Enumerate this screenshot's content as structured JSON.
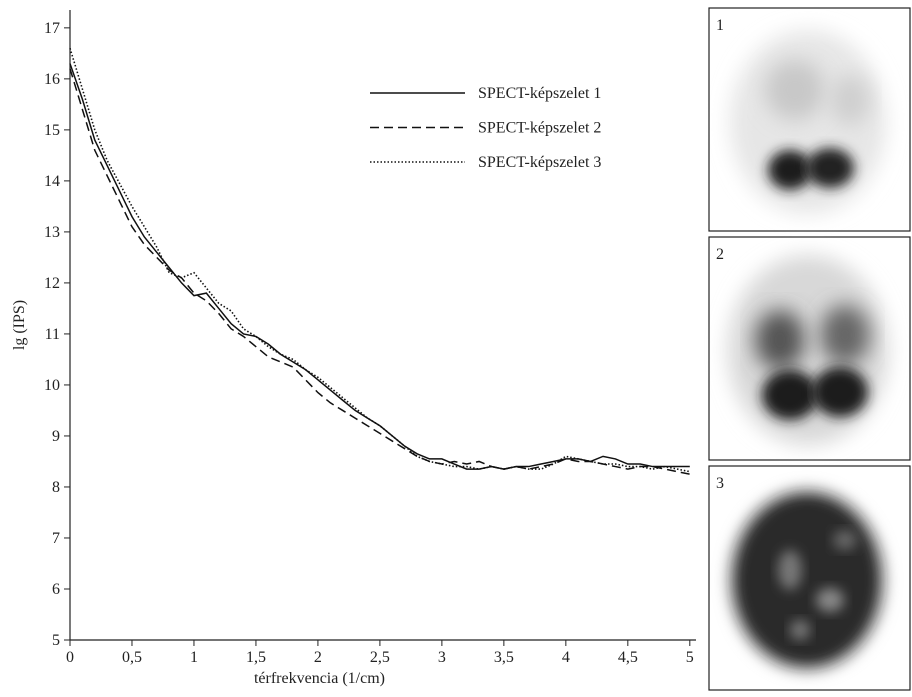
{
  "chart_data": {
    "type": "line",
    "x_label": "térfrekvencia (1/cm)",
    "y_label": "lg (IPS)",
    "x": [
      0,
      0.1,
      0.2,
      0.3,
      0.4,
      0.5,
      0.6,
      0.7,
      0.8,
      0.9,
      1.0,
      1.1,
      1.2,
      1.3,
      1.4,
      1.5,
      1.6,
      1.7,
      1.8,
      1.9,
      2.0,
      2.1,
      2.2,
      2.3,
      2.4,
      2.5,
      2.6,
      2.7,
      2.8,
      2.9,
      3.0,
      3.1,
      3.2,
      3.3,
      3.4,
      3.5,
      3.6,
      3.7,
      3.8,
      3.9,
      4.0,
      4.1,
      4.2,
      4.3,
      4.4,
      4.5,
      4.6,
      4.7,
      4.8,
      4.9,
      5.0
    ],
    "series": [
      {
        "name": "SPECT-képszelet 1",
        "color": "#111111",
        "style": "solid",
        "values": [
          16.3,
          15.6,
          14.8,
          14.3,
          13.8,
          13.3,
          12.9,
          12.6,
          12.3,
          12.0,
          11.75,
          11.8,
          11.5,
          11.2,
          11.0,
          10.95,
          10.8,
          10.6,
          10.45,
          10.3,
          10.1,
          9.9,
          9.7,
          9.5,
          9.35,
          9.2,
          9.0,
          8.8,
          8.65,
          8.55,
          8.55,
          8.45,
          8.35,
          8.35,
          8.4,
          8.35,
          8.4,
          8.4,
          8.45,
          8.5,
          8.55,
          8.55,
          8.5,
          8.6,
          8.55,
          8.45,
          8.45,
          8.4,
          8.4,
          8.4,
          8.4
        ]
      },
      {
        "name": "SPECT-képszelet 2",
        "color": "#111111",
        "style": "dashed",
        "values": [
          16.2,
          15.4,
          14.6,
          14.1,
          13.6,
          13.1,
          12.75,
          12.5,
          12.25,
          12.1,
          11.8,
          11.65,
          11.4,
          11.1,
          10.95,
          10.75,
          10.55,
          10.45,
          10.35,
          10.1,
          9.85,
          9.65,
          9.5,
          9.35,
          9.2,
          9.05,
          8.9,
          8.75,
          8.6,
          8.5,
          8.45,
          8.5,
          8.45,
          8.5,
          8.4,
          8.35,
          8.4,
          8.35,
          8.4,
          8.45,
          8.55,
          8.5,
          8.5,
          8.45,
          8.4,
          8.35,
          8.4,
          8.4,
          8.35,
          8.3,
          8.25
        ]
      },
      {
        "name": "SPECT-képszelet 3",
        "color": "#111111",
        "style": "dotted",
        "values": [
          16.6,
          15.8,
          15.0,
          14.4,
          13.95,
          13.5,
          13.1,
          12.7,
          12.2,
          12.1,
          12.2,
          11.9,
          11.6,
          11.45,
          11.1,
          10.95,
          10.75,
          10.6,
          10.5,
          10.3,
          10.15,
          9.95,
          9.75,
          9.55,
          9.35,
          9.2,
          9.0,
          8.8,
          8.6,
          8.5,
          8.45,
          8.4,
          8.4,
          8.35,
          8.4,
          8.35,
          8.4,
          8.35,
          8.35,
          8.45,
          8.6,
          8.55,
          8.5,
          8.45,
          8.45,
          8.4,
          8.4,
          8.35,
          8.4,
          8.35,
          8.3
        ]
      }
    ],
    "xlim": [
      0,
      5.05
    ],
    "xticks": [
      0,
      {
        "value": 0.5,
        "label": "0,5"
      },
      1,
      {
        "value": 1.5,
        "label": "1,5"
      },
      2,
      {
        "value": 2.5,
        "label": "2,5"
      },
      3,
      {
        "value": 3.5,
        "label": "3,5"
      },
      4,
      {
        "value": 4.5,
        "label": "4,5"
      },
      5
    ],
    "ylim": [
      5,
      17.35
    ],
    "yticks": [
      5,
      6,
      7,
      8,
      9,
      10,
      11,
      12,
      13,
      14,
      15,
      16,
      17
    ],
    "legend": "top-right",
    "panel_labels": [
      "1",
      "2",
      "3"
    ]
  }
}
